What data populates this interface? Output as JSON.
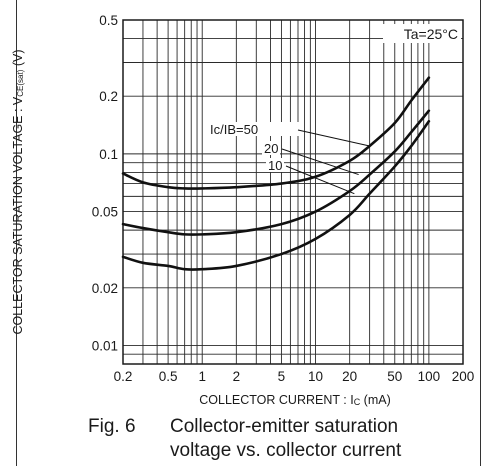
{
  "chart_data": {
    "type": "line",
    "x_scale": "log",
    "y_scale": "log",
    "xlim": [
      0.2,
      200
    ],
    "ylim": [
      0.008,
      0.5
    ],
    "grid": true,
    "annotation": "Ta=25°C",
    "xlabel": "COLLECTOR CURRENT : Ic (mA)",
    "ylabel": "COLLECTOR SATURATION VOLTAGE : VCE(sat) (V)",
    "x_ticks": [
      0.2,
      0.5,
      1,
      2,
      5,
      10,
      20,
      50,
      100,
      200
    ],
    "x_tick_labels": [
      "0.2",
      "0.5",
      "1",
      "2",
      "5",
      "10",
      "20",
      "50",
      "100",
      "200"
    ],
    "y_ticks": [
      0.01,
      0.02,
      0.05,
      0.1,
      0.2,
      0.5
    ],
    "y_tick_labels": [
      "0.01",
      "0.02",
      "0.05",
      "0.1",
      "0.2",
      "0.5"
    ],
    "series": [
      {
        "name": "Ic/IB=50",
        "x": [
          0.2,
          0.3,
          0.5,
          0.7,
          1,
          2,
          5,
          10,
          20,
          30,
          50,
          70,
          100
        ],
        "y": [
          0.079,
          0.071,
          0.067,
          0.066,
          0.066,
          0.067,
          0.07,
          0.076,
          0.092,
          0.11,
          0.145,
          0.19,
          0.25
        ]
      },
      {
        "name": "20",
        "x": [
          0.2,
          0.3,
          0.5,
          0.7,
          1,
          2,
          5,
          10,
          20,
          30,
          50,
          70,
          100
        ],
        "y": [
          0.043,
          0.041,
          0.039,
          0.038,
          0.038,
          0.039,
          0.043,
          0.05,
          0.064,
          0.078,
          0.103,
          0.13,
          0.168
        ]
      },
      {
        "name": "10",
        "x": [
          0.2,
          0.3,
          0.5,
          0.7,
          1,
          2,
          5,
          10,
          20,
          30,
          50,
          70,
          100
        ],
        "y": [
          0.029,
          0.027,
          0.026,
          0.025,
          0.025,
          0.026,
          0.03,
          0.036,
          0.048,
          0.062,
          0.086,
          0.11,
          0.148
        ]
      }
    ]
  },
  "caption": {
    "number": "Fig. 6",
    "line1": "Collector-emitter saturation",
    "line2": "voltage vs. collector current"
  }
}
